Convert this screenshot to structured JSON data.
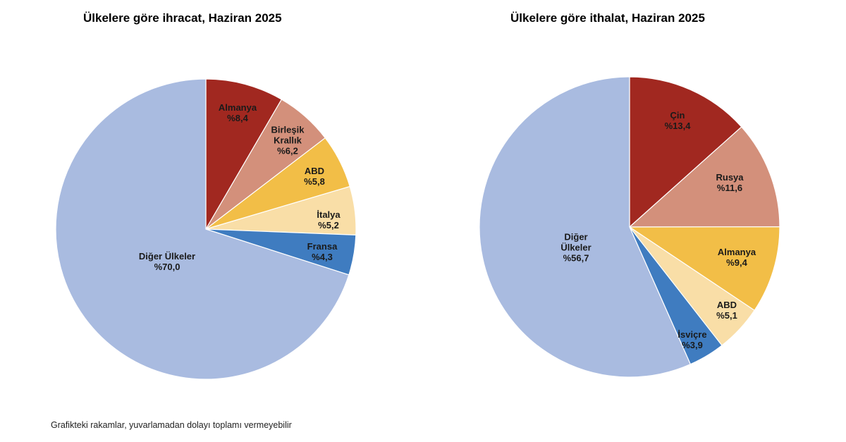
{
  "colors": {
    "dark_red": "#A12820",
    "salmon": "#D3907B",
    "gold": "#F2BE47",
    "cream": "#F9DEA7",
    "blue": "#3F7CC0",
    "light_blue": "#A9BBE0"
  },
  "chart_data": [
    {
      "type": "pie",
      "title": "Ülkelere göre ihracat, Haziran 2025",
      "slices": [
        {
          "label": [
            "Almanya"
          ],
          "pct_text": "%8,4",
          "value": 8.4,
          "color": "#A12820"
        },
        {
          "label": [
            "Birleşik",
            "Krallık"
          ],
          "pct_text": "%6,2",
          "value": 6.2,
          "color": "#D3907B"
        },
        {
          "label": [
            "ABD"
          ],
          "pct_text": "%5,8",
          "value": 5.8,
          "color": "#F2BE47"
        },
        {
          "label": [
            "İtalya"
          ],
          "pct_text": "%5,2",
          "value": 5.2,
          "color": "#F9DEA7"
        },
        {
          "label": [
            "Fransa"
          ],
          "pct_text": "%4,3",
          "value": 4.3,
          "color": "#3F7CC0"
        },
        {
          "label": [
            "Diğer Ülkeler"
          ],
          "pct_text": "%70,0",
          "value": 70.0,
          "color": "#A9BBE0"
        }
      ]
    },
    {
      "type": "pie",
      "title": "Ülkelere göre ithalat, Haziran 2025",
      "slices": [
        {
          "label": [
            "Çin"
          ],
          "pct_text": "%13,4",
          "value": 13.4,
          "color": "#A12820"
        },
        {
          "label": [
            "Rusya"
          ],
          "pct_text": "%11,6",
          "value": 11.6,
          "color": "#D3907B"
        },
        {
          "label": [
            "Almanya"
          ],
          "pct_text": "%9,4",
          "value": 9.4,
          "color": "#F2BE47"
        },
        {
          "label": [
            "ABD"
          ],
          "pct_text": "%5,1",
          "value": 5.1,
          "color": "#F9DEA7"
        },
        {
          "label": [
            "İsviçre"
          ],
          "pct_text": "%3,9",
          "value": 3.9,
          "color": "#3F7CC0"
        },
        {
          "label": [
            "Diğer",
            "Ülkeler"
          ],
          "pct_text": "%56,7",
          "value": 56.7,
          "color": "#A9BBE0"
        }
      ]
    }
  ],
  "footnote": "Grafikteki rakamlar, yuvarlamadan dolayı toplamı vermeyebilir"
}
